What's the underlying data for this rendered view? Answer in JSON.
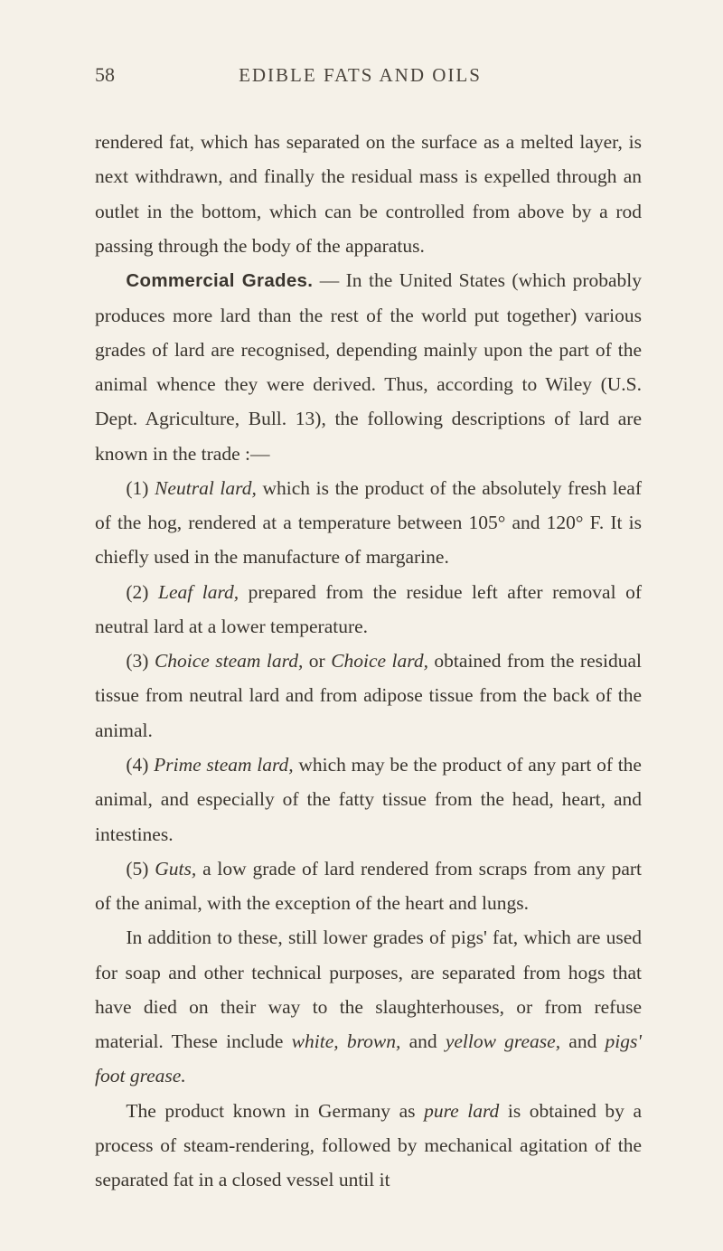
{
  "page": {
    "number": "58",
    "running_title": "EDIBLE FATS AND OILS",
    "background_color": "#f5f1e8",
    "text_color": "#3a352e",
    "body_fontsize": 21.5,
    "header_fontsize": 21,
    "line_height": 1.78,
    "paragraphs": [
      {
        "indent": false,
        "html": "rendered fat, which has separated on the surface as a melted layer, is next withdrawn, and finally the residual mass is expelled through an outlet in the bottom, which can be con­trolled from above by a rod passing through the body of the apparatus."
      },
      {
        "indent": true,
        "html": "<span class=\"bold-head\">Commercial Grades.</span> — In the United States (which probably produces more lard than the rest of the world put together) various grades of lard are recognised, depending mainly upon the part of the animal whence they were derived. Thus, according to Wiley (U.S. Dept. Agriculture, Bull. 13), the following descriptions of lard are known in the trade :—"
      },
      {
        "indent": true,
        "html": "(1) <i>Neutral lard,</i> which is the product of the absolutely fresh leaf of the hog, rendered at a temperature between 105° and 120° F. It is chiefly used in the manufacture of margarine."
      },
      {
        "indent": true,
        "html": "(2) <i>Leaf lard,</i> prepared from the residue left after removal of neutral lard at a lower temperature."
      },
      {
        "indent": true,
        "html": "(3) <i>Choice steam lard,</i> or <i>Choice lard,</i> obtained from the residual tissue from neutral lard and from adipose tissue from the back of the animal."
      },
      {
        "indent": true,
        "html": "(4) <i>Prime steam lard,</i> which may be the product of any part of the animal, and especially of the fatty tissue from the head, heart, and intestines."
      },
      {
        "indent": true,
        "html": "(5) <i>Guts,</i> a low grade of lard rendered from scraps from any part of the animal, with the exception of the heart and lungs."
      },
      {
        "indent": true,
        "html": "In addition to these, still lower grades of pigs' fat, which are used for soap and other technical purposes, are separated from hogs that have died on their way to the slaughter­houses, or from refuse material. These include <i>white, brown,</i> and <i>yellow grease,</i> and <i>pigs' foot grease.</i>"
      },
      {
        "indent": true,
        "html": "The product known in Germany as <i>pure lard</i> is obtained by a process of steam-rendering, followed by mechanical agitation of the separated fat in a closed vessel until it"
      }
    ]
  }
}
